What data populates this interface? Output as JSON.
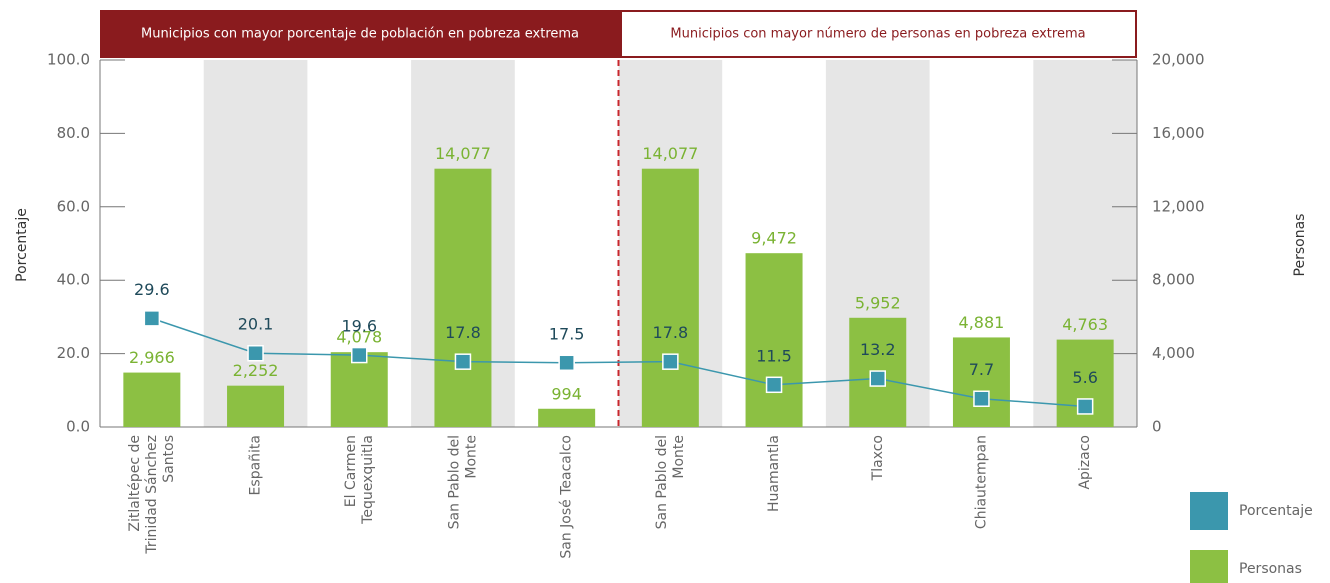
{
  "chart_data": {
    "type": "bar-line",
    "groups": [
      "Municipios con mayor porcentaje de población en pobreza extrema",
      "Municipios con mayor número de personas en pobreza extrema"
    ],
    "ylabel": "Porcentaje",
    "y2label": "Personas",
    "categories": [
      "Zitlaltépec de Trinidad Sánchez Santos",
      "Españita",
      "El Carmen Tequexquitla",
      "San Pablo del Monte",
      "San José Teacalco",
      "San Pablo del Monte",
      "Huamantla",
      "Tlaxco",
      "Chiautempan",
      "Apizaco"
    ],
    "series": [
      {
        "name": "Porcentaje",
        "color": "#3b97ad",
        "type": "line",
        "values": [
          29.6,
          20.1,
          19.6,
          17.8,
          17.5,
          17.8,
          11.5,
          13.2,
          7.7,
          5.6
        ]
      },
      {
        "name": "Personas",
        "color": "#8cc043",
        "type": "bar",
        "axis": "y2",
        "values": [
          2966,
          2252,
          4078,
          14077,
          994,
          14077,
          9472,
          5952,
          4881,
          4763
        ],
        "value_labels": [
          "2,966",
          "2,252",
          "4,078",
          "14,077",
          "994",
          "14,077",
          "9,472",
          "5,952",
          "4,881",
          "4,763"
        ]
      }
    ],
    "ylim": [
      0,
      100
    ],
    "yticks": [
      {
        "value": 0,
        "label": "0.0"
      },
      {
        "value": 20,
        "label": "20.0"
      },
      {
        "value": 40,
        "label": "40.0"
      },
      {
        "value": 60,
        "label": "60.0"
      },
      {
        "value": 80,
        "label": "80.0"
      },
      {
        "value": 100,
        "label": "100.0"
      }
    ],
    "y2lim": [
      0,
      20000
    ],
    "y2ticks": [
      0,
      {
        "value": 4000,
        "label": "4,000"
      },
      {
        "value": 8000,
        "label": "8,000"
      },
      {
        "value": 12000,
        "label": "12,000"
      },
      {
        "value": 16000,
        "label": "16,000"
      },
      {
        "value": 20000,
        "label": "20,000"
      }
    ]
  }
}
